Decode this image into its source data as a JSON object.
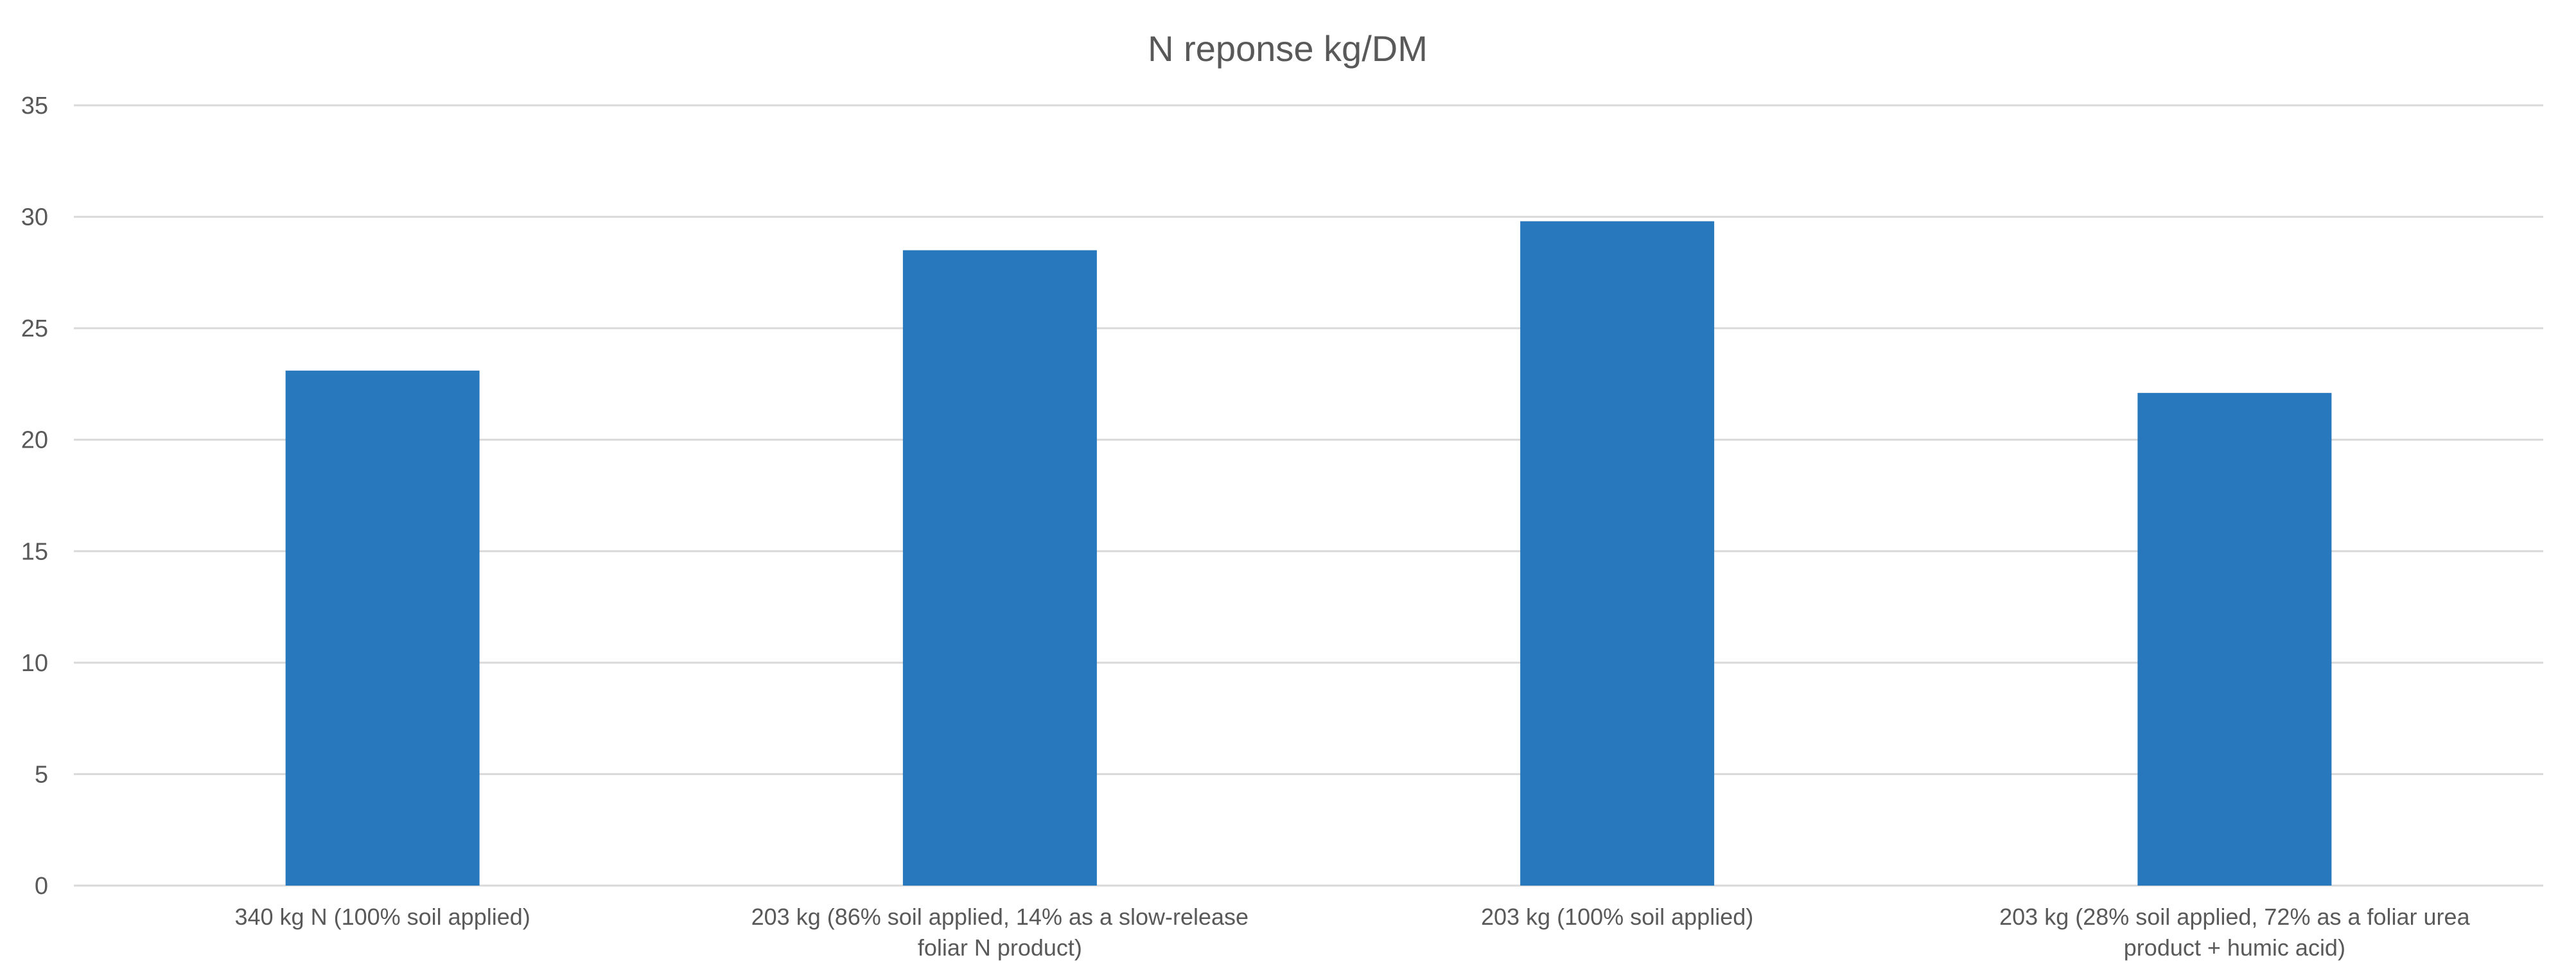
{
  "chart_data": {
    "type": "bar",
    "title": "N reponse kg/DM",
    "categories": [
      [
        "340 kg N (100% soil applied)"
      ],
      [
        "203 kg (86% soil applied, 14% as a slow-release",
        "foliar N product)"
      ],
      [
        "203 kg (100% soil applied)"
      ],
      [
        "203 kg (28% soil applied, 72% as a foliar urea",
        "product + humic acid)"
      ]
    ],
    "values": [
      23.1,
      28.5,
      29.8,
      22.1
    ],
    "xlabel": "",
    "ylabel": "",
    "ylim": [
      0,
      35
    ],
    "yticks": [
      0,
      5,
      10,
      15,
      20,
      25,
      30,
      35
    ],
    "grid": true,
    "legend": "none",
    "colors": {
      "bar": "#2878BD",
      "grid": "#D9D9D9",
      "text": "#595959"
    }
  }
}
